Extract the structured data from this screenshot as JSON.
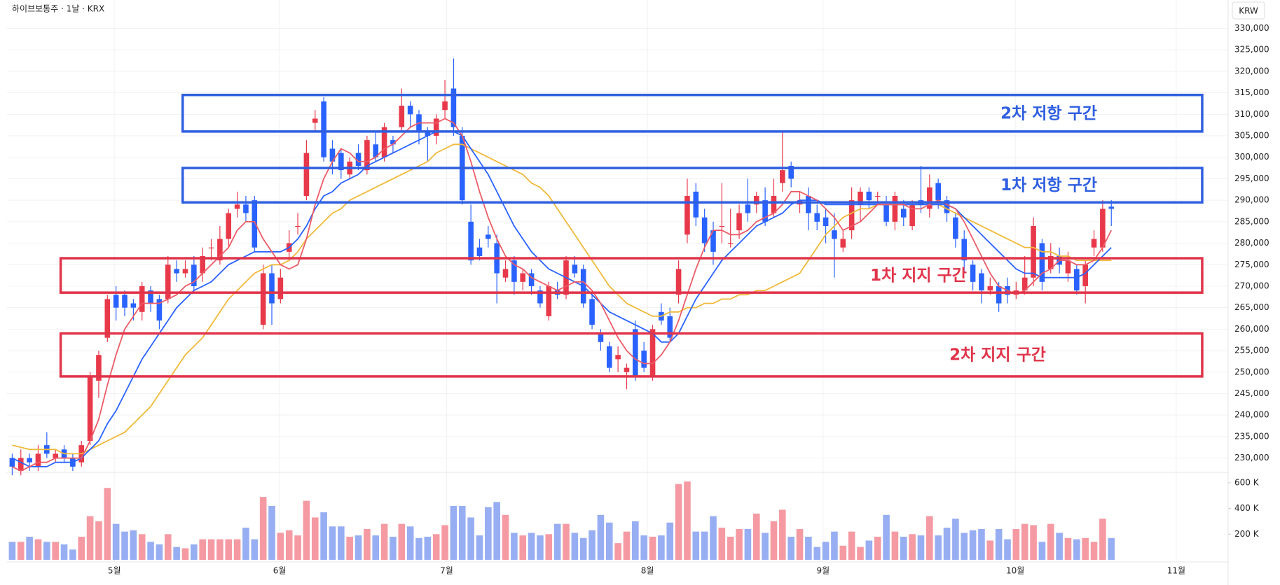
{
  "chart_data": {
    "type": "candlestick",
    "title": "하이브보통주 · 1날 · KRX",
    "currency": "KRW",
    "xlim": [
      -0.6,
      140.5
    ],
    "xticks": [
      {
        "value": 11.8,
        "label": "5월"
      },
      {
        "value": 30.9,
        "label": "6월"
      },
      {
        "value": 50.2,
        "label": "7월"
      },
      {
        "value": 73.4,
        "label": "8월"
      },
      {
        "value": 93.7,
        "label": "9월"
      },
      {
        "value": 115.9,
        "label": "10월"
      },
      {
        "value": 134.5,
        "label": "11월"
      }
    ],
    "ylim": [
      227000,
      336600
    ],
    "yticks": [
      {
        "value": 230000,
        "label": "230,000"
      },
      {
        "value": 235000,
        "label": "235,000"
      },
      {
        "value": 240000,
        "label": "240,000"
      },
      {
        "value": 245000,
        "label": "245,000"
      },
      {
        "value": 250000,
        "label": "250,000"
      },
      {
        "value": 255000,
        "label": "255,000"
      },
      {
        "value": 260000,
        "label": "260,000"
      },
      {
        "value": 265000,
        "label": "265,000"
      },
      {
        "value": 270000,
        "label": "270,000"
      },
      {
        "value": 275000,
        "label": "275,000"
      },
      {
        "value": 280000,
        "label": "280,000"
      },
      {
        "value": 285000,
        "label": "285,000"
      },
      {
        "value": 290000,
        "label": "290,000"
      },
      {
        "value": 295000,
        "label": "295,000"
      },
      {
        "value": 300000,
        "label": "300,000"
      },
      {
        "value": 305000,
        "label": "305,000"
      },
      {
        "value": 310000,
        "label": "310,000"
      },
      {
        "value": 315000,
        "label": "315,000"
      },
      {
        "value": 320000,
        "label": "320,000"
      },
      {
        "value": 325000,
        "label": "325,000"
      },
      {
        "value": 330000,
        "label": "330,000"
      }
    ],
    "grid": true,
    "up_color": "#e8394a",
    "down_color": "#2962ff",
    "open": [
      230000,
      227000,
      230000,
      228000,
      233000,
      230000,
      232000,
      230000,
      229000,
      234000,
      248000,
      258000,
      268000,
      268000,
      266000,
      264000,
      269000,
      267000,
      267000,
      274000,
      273000,
      275000,
      273000,
      279000,
      276000,
      281000,
      288000,
      289000,
      290000,
      261000,
      273000,
      267000,
      278000,
      284000,
      291000,
      308000,
      313000,
      302000,
      301000,
      296000,
      301000,
      297000,
      303000,
      300000,
      304000,
      307000,
      312000,
      310000,
      306000,
      305000,
      311000,
      316000,
      305000,
      285000,
      279000,
      282000,
      280000,
      272000,
      276000,
      271000,
      273000,
      269000,
      263000,
      269000,
      268000,
      275000,
      274000,
      267000,
      259000,
      256000,
      253000,
      250000,
      260000,
      255000,
      249000,
      264000,
      263000,
      268000,
      282000,
      292000,
      286000,
      283000,
      284000,
      280000,
      283000,
      289000,
      289000,
      290000,
      287000,
      294000,
      298000,
      289000,
      291000,
      287000,
      286000,
      283000,
      279000,
      283000,
      289000,
      292000,
      291000,
      289000,
      285000,
      288000,
      284000,
      290000,
      288000,
      294000,
      290000,
      286000,
      281000,
      275000,
      273000,
      269000,
      270000,
      270000,
      268000,
      269000,
      272000,
      280000,
      274000,
      277000,
      273000,
      274000,
      270000,
      279000,
      279000,
      288500
    ],
    "high": [
      231000,
      232000,
      231000,
      233000,
      236000,
      232000,
      233000,
      231000,
      234000,
      250000,
      255000,
      268000,
      270000,
      269000,
      267000,
      271000,
      270000,
      268000,
      277000,
      276000,
      276000,
      277000,
      279000,
      281000,
      284000,
      288000,
      292000,
      291000,
      291000,
      275000,
      275000,
      274000,
      283000,
      287000,
      304000,
      311000,
      314000,
      304000,
      302000,
      300000,
      303000,
      305000,
      306000,
      308000,
      305000,
      316000,
      313000,
      311000,
      307000,
      310000,
      318000,
      323000,
      307000,
      289000,
      281000,
      284000,
      282000,
      276000,
      277000,
      274000,
      274000,
      270000,
      271000,
      271000,
      277000,
      277000,
      275000,
      268000,
      260000,
      257000,
      256000,
      252000,
      262000,
      257000,
      261000,
      266000,
      265000,
      276000,
      295000,
      294000,
      288000,
      285000,
      294000,
      288000,
      289000,
      295000,
      292000,
      293000,
      295000,
      306000,
      299000,
      292000,
      293000,
      289000,
      288000,
      287000,
      283000,
      293000,
      293000,
      293000,
      292000,
      291000,
      292000,
      290000,
      290000,
      298000,
      296000,
      295000,
      291000,
      287000,
      283000,
      276000,
      274000,
      272000,
      271000,
      272000,
      271000,
      277000,
      286000,
      281000,
      280000,
      279000,
      278000,
      275000,
      276000,
      283000,
      290000,
      290000
    ],
    "low": [
      226000,
      226000,
      227000,
      227000,
      230000,
      229000,
      229000,
      227000,
      228000,
      233000,
      244000,
      257000,
      262000,
      263000,
      262000,
      262000,
      264000,
      260000,
      266000,
      271000,
      272000,
      269000,
      271000,
      276000,
      275000,
      279000,
      286000,
      285000,
      278000,
      260000,
      261000,
      266000,
      276000,
      282000,
      290000,
      306000,
      299000,
      296000,
      295000,
      295000,
      297000,
      296000,
      299000,
      299000,
      301000,
      306000,
      307000,
      303000,
      299000,
      303000,
      309000,
      305000,
      289000,
      275000,
      276000,
      279000,
      266000,
      271000,
      268000,
      269000,
      268000,
      265000,
      262000,
      267000,
      267000,
      272000,
      265000,
      260000,
      255000,
      250000,
      250000,
      246000,
      248000,
      250000,
      248000,
      261000,
      257000,
      266000,
      280000,
      284000,
      278000,
      275000,
      280000,
      279000,
      281000,
      285000,
      287000,
      284000,
      286000,
      292000,
      293000,
      287000,
      283000,
      283000,
      280000,
      272000,
      278000,
      281000,
      285000,
      288000,
      289000,
      284000,
      283000,
      284000,
      283000,
      287000,
      286000,
      288000,
      285000,
      279000,
      273000,
      269000,
      266000,
      268000,
      264000,
      266000,
      267000,
      268000,
      270000,
      269000,
      273000,
      273000,
      271000,
      268000,
      266000,
      277000,
      278000,
      284000
    ],
    "close": [
      228000,
      230000,
      229000,
      231000,
      231000,
      231000,
      230000,
      228000,
      233000,
      249000,
      254000,
      267000,
      265000,
      265000,
      265000,
      270000,
      266000,
      262000,
      275000,
      273000,
      274000,
      270000,
      277000,
      279000,
      281000,
      287000,
      289000,
      287000,
      279000,
      273000,
      266000,
      272000,
      280000,
      284000,
      301000,
      309000,
      300000,
      299000,
      297000,
      299000,
      298000,
      304000,
      300000,
      307000,
      303000,
      312000,
      310000,
      306000,
      305000,
      309000,
      313000,
      307000,
      290000,
      276000,
      277000,
      281000,
      273000,
      274000,
      271000,
      273000,
      270000,
      266000,
      270000,
      268000,
      276000,
      273000,
      266000,
      261000,
      257000,
      251000,
      254000,
      251000,
      249000,
      251000,
      260000,
      262000,
      258000,
      274000,
      291000,
      286000,
      280000,
      278000,
      284000,
      280000,
      287000,
      287000,
      291000,
      285000,
      291000,
      297000,
      295000,
      290000,
      287000,
      285000,
      284000,
      281000,
      281000,
      290000,
      292000,
      290000,
      291000,
      285000,
      291000,
      286000,
      289000,
      289000,
      293000,
      290000,
      287000,
      281000,
      276000,
      271000,
      269000,
      270000,
      266000,
      268000,
      269000,
      272000,
      284000,
      271000,
      277000,
      275000,
      276000,
      269000,
      275000,
      281000,
      288000,
      288000
    ],
    "moving_averages": [
      {
        "color": "#f0b93a",
        "values": [
          233000,
          232500,
          232000,
          232000,
          232000,
          232000,
          231000,
          231000,
          231000,
          232000,
          233000,
          234000,
          235000,
          236000,
          238000,
          240000,
          242000,
          245000,
          248000,
          251000,
          254000,
          256000,
          258000,
          261000,
          264000,
          267000,
          269000,
          271000,
          273000,
          274000,
          275000,
          275000,
          276000,
          278000,
          281000,
          283000,
          285000,
          287000,
          288000,
          290000,
          291000,
          292000,
          293000,
          294000,
          295000,
          296000,
          297000,
          298000,
          299000,
          301000,
          302000,
          303000,
          303000,
          302000,
          301000,
          300000,
          299000,
          298000,
          297000,
          296000,
          294000,
          293000,
          291000,
          288000,
          285000,
          282000,
          279000,
          276000,
          273000,
          270000,
          268000,
          266000,
          265000,
          264000,
          263000,
          263000,
          264000,
          264000,
          265000,
          265000,
          266000,
          266000,
          267000,
          267000,
          268000,
          268000,
          269000,
          269000,
          270000,
          271000,
          272000,
          273000,
          276000,
          279000,
          282000,
          284000,
          286000,
          287000,
          288000,
          288000,
          289000,
          289000,
          289000,
          289000,
          289000,
          289000,
          289000,
          289000,
          288000,
          287000,
          286000,
          285000,
          284000,
          283000,
          282000,
          281000,
          280000,
          279000,
          279000,
          278000,
          278000,
          277000,
          277000,
          276000,
          276000,
          276000,
          276000,
          276000
        ]
      },
      {
        "color": "#2962ff",
        "values": [
          230000,
          229000,
          228000,
          228000,
          228000,
          229000,
          229000,
          229000,
          230000,
          232000,
          234000,
          238000,
          241000,
          245000,
          249000,
          253000,
          256000,
          259000,
          262000,
          265000,
          267000,
          269000,
          270000,
          271000,
          273000,
          275000,
          276000,
          277000,
          278000,
          278000,
          278000,
          278000,
          279000,
          281000,
          284000,
          288000,
          291000,
          292000,
          294000,
          295000,
          296000,
          298000,
          299000,
          300000,
          301000,
          302000,
          303000,
          304000,
          305000,
          306000,
          306000,
          306000,
          305000,
          302000,
          299000,
          296000,
          292000,
          288000,
          284000,
          281000,
          278000,
          276000,
          274000,
          273000,
          272000,
          271000,
          270000,
          268000,
          266000,
          264000,
          263000,
          262000,
          261000,
          260000,
          259000,
          257000,
          257000,
          259000,
          263000,
          267000,
          270000,
          273000,
          276000,
          278000,
          280000,
          282000,
          284000,
          285000,
          286000,
          287000,
          289000,
          290000,
          290000,
          290000,
          289000,
          289000,
          289000,
          289000,
          289000,
          289000,
          289000,
          289000,
          289000,
          289000,
          289000,
          289000,
          289000,
          289000,
          289000,
          288000,
          286000,
          284000,
          282000,
          280000,
          278000,
          276000,
          274000,
          273000,
          273000,
          272000,
          272000,
          272000,
          272000,
          272000,
          273000,
          275000,
          277000,
          279000
        ]
      },
      {
        "color": "#ec5b66",
        "values": [
          228000,
          227000,
          228000,
          229000,
          229000,
          230000,
          230000,
          230000,
          230000,
          234000,
          239000,
          247000,
          254000,
          260000,
          263000,
          266000,
          266000,
          266000,
          267000,
          268000,
          270000,
          271000,
          273000,
          275000,
          277000,
          279000,
          283000,
          285000,
          285000,
          281000,
          278000,
          275000,
          274000,
          275000,
          281000,
          289000,
          295000,
          299000,
          302000,
          301000,
          299000,
          299000,
          300000,
          302000,
          303000,
          305000,
          307000,
          308000,
          308000,
          308000,
          309000,
          308000,
          305000,
          299000,
          292000,
          286000,
          281000,
          277000,
          275000,
          274000,
          272000,
          271000,
          270000,
          269000,
          270000,
          271000,
          271000,
          269000,
          266000,
          262000,
          258000,
          255000,
          253000,
          252000,
          252000,
          254000,
          257000,
          262000,
          268000,
          274000,
          279000,
          283000,
          283000,
          282000,
          282000,
          283000,
          285000,
          286000,
          287000,
          289000,
          292000,
          292000,
          291000,
          290000,
          288000,
          286000,
          283000,
          284000,
          285000,
          287000,
          289000,
          289000,
          289000,
          289000,
          288000,
          288000,
          289000,
          290000,
          289000,
          288000,
          285000,
          281000,
          277000,
          273000,
          270000,
          269000,
          268000,
          269000,
          271000,
          273000,
          274000,
          276000,
          276000,
          275000,
          275000,
          276000,
          279000,
          283000
        ]
      }
    ],
    "volume": {
      "ylim": [
        0,
        665000
      ],
      "yticks": [
        {
          "value": 200000,
          "label": "200 K"
        },
        {
          "value": 400000,
          "label": "400 K"
        },
        {
          "value": 600000,
          "label": "600 K"
        }
      ],
      "up_color": "#f59aa3",
      "down_color": "#98aef3",
      "values": [
        140000,
        140000,
        180000,
        160000,
        140000,
        140000,
        120000,
        80000,
        180000,
        340000,
        300000,
        560000,
        280000,
        220000,
        230000,
        200000,
        140000,
        120000,
        200000,
        100000,
        90000,
        120000,
        160000,
        160000,
        160000,
        160000,
        160000,
        250000,
        160000,
        490000,
        420000,
        210000,
        230000,
        190000,
        460000,
        330000,
        370000,
        260000,
        260000,
        180000,
        190000,
        240000,
        190000,
        280000,
        180000,
        280000,
        260000,
        170000,
        180000,
        200000,
        270000,
        420000,
        420000,
        330000,
        190000,
        410000,
        450000,
        350000,
        210000,
        190000,
        210000,
        190000,
        200000,
        280000,
        280000,
        210000,
        170000,
        230000,
        350000,
        290000,
        130000,
        220000,
        300000,
        190000,
        180000,
        190000,
        290000,
        590000,
        610000,
        220000,
        220000,
        340000,
        250000,
        180000,
        240000,
        240000,
        360000,
        210000,
        300000,
        390000,
        180000,
        240000,
        180000,
        100000,
        140000,
        220000,
        110000,
        220000,
        100000,
        150000,
        180000,
        350000,
        220000,
        180000,
        200000,
        190000,
        340000,
        190000,
        250000,
        320000,
        210000,
        230000,
        240000,
        150000,
        240000,
        160000,
        240000,
        280000,
        270000,
        140000,
        280000,
        210000,
        170000,
        160000,
        170000,
        140000,
        320000,
        170000
      ]
    },
    "zones": [
      {
        "label": "2차 저항 구간",
        "range": [
          306000,
          314500
        ],
        "x_range": [
          19.7,
          137.5
        ],
        "color": "#2f5fe0"
      },
      {
        "label": "1차 저항 구간",
        "range": [
          289500,
          297500
        ],
        "x_range": [
          19.7,
          137.5
        ],
        "color": "#2f5fe0"
      },
      {
        "label": "1차 지지 구간",
        "range": [
          268500,
          276500
        ],
        "x_range": [
          5.6,
          137.5
        ],
        "color": "#e0344a"
      },
      {
        "label": "2차 지지 구간",
        "range": [
          249000,
          259000
        ],
        "x_range": [
          5.6,
          137.5
        ],
        "color": "#e0344a"
      }
    ]
  }
}
